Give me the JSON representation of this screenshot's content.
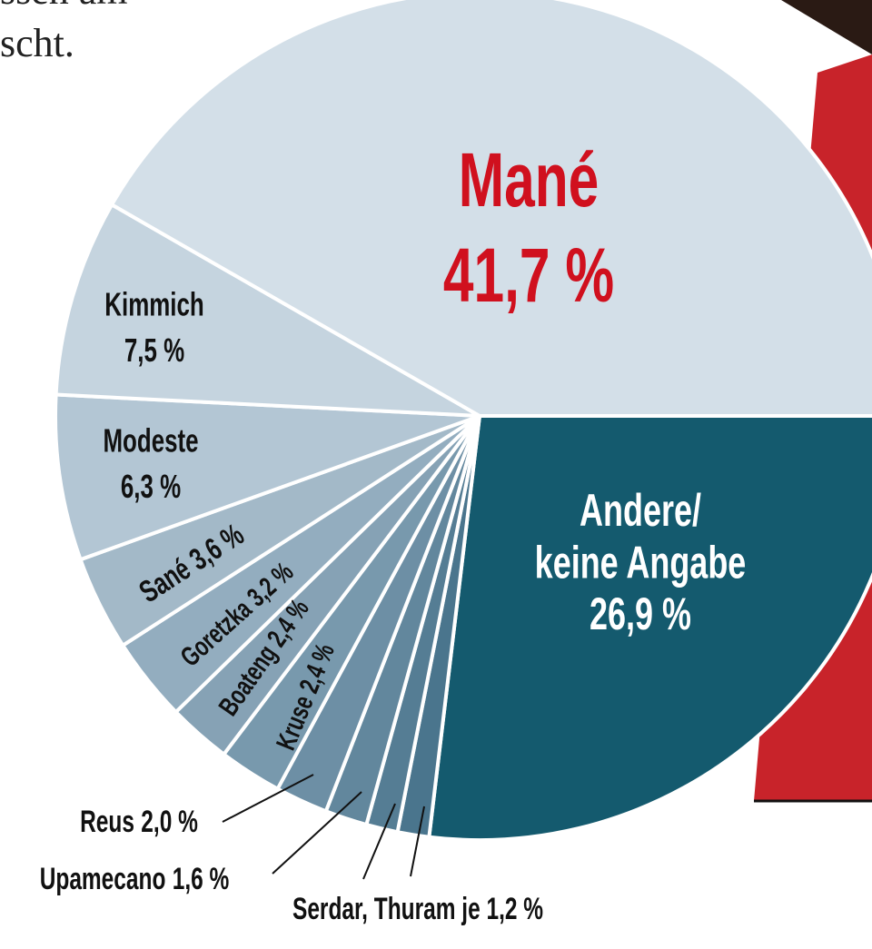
{
  "page_text": [
    "ssen am",
    "scht."
  ],
  "chart_data": {
    "type": "pie",
    "categories": [
      "Andere/ keine Angabe",
      null,
      null,
      "Upamecano",
      "Reus",
      "Kruse",
      "Boateng",
      "Goretzka",
      "Sané",
      "Modeste",
      "Kimmich",
      "Mané"
    ],
    "values": [
      26.9,
      1.2,
      1.2,
      1.6,
      2.0,
      2.4,
      2.4,
      3.2,
      3.6,
      6.3,
      7.5,
      41.7
    ],
    "value_labels": [
      "26,9 %",
      null,
      null,
      "1,6 %",
      "2,0 %",
      "2,4 %",
      "2,4 %",
      "3,2 %",
      "3,6 %",
      "6,3 %",
      "7,5 %",
      "41,7 %"
    ],
    "colors": [
      "#145a6e",
      "#4a758d",
      "#557d94",
      "#62879d",
      "#6d8fa5",
      "#7899ad",
      "#86a2b5",
      "#93adbf",
      "#a3b9c8",
      "#b3c6d4",
      "#c5d4df",
      "#d3dfe8"
    ],
    "annotations": [
      {
        "text": "Serdar, Thuram je 1,2 %"
      }
    ]
  }
}
